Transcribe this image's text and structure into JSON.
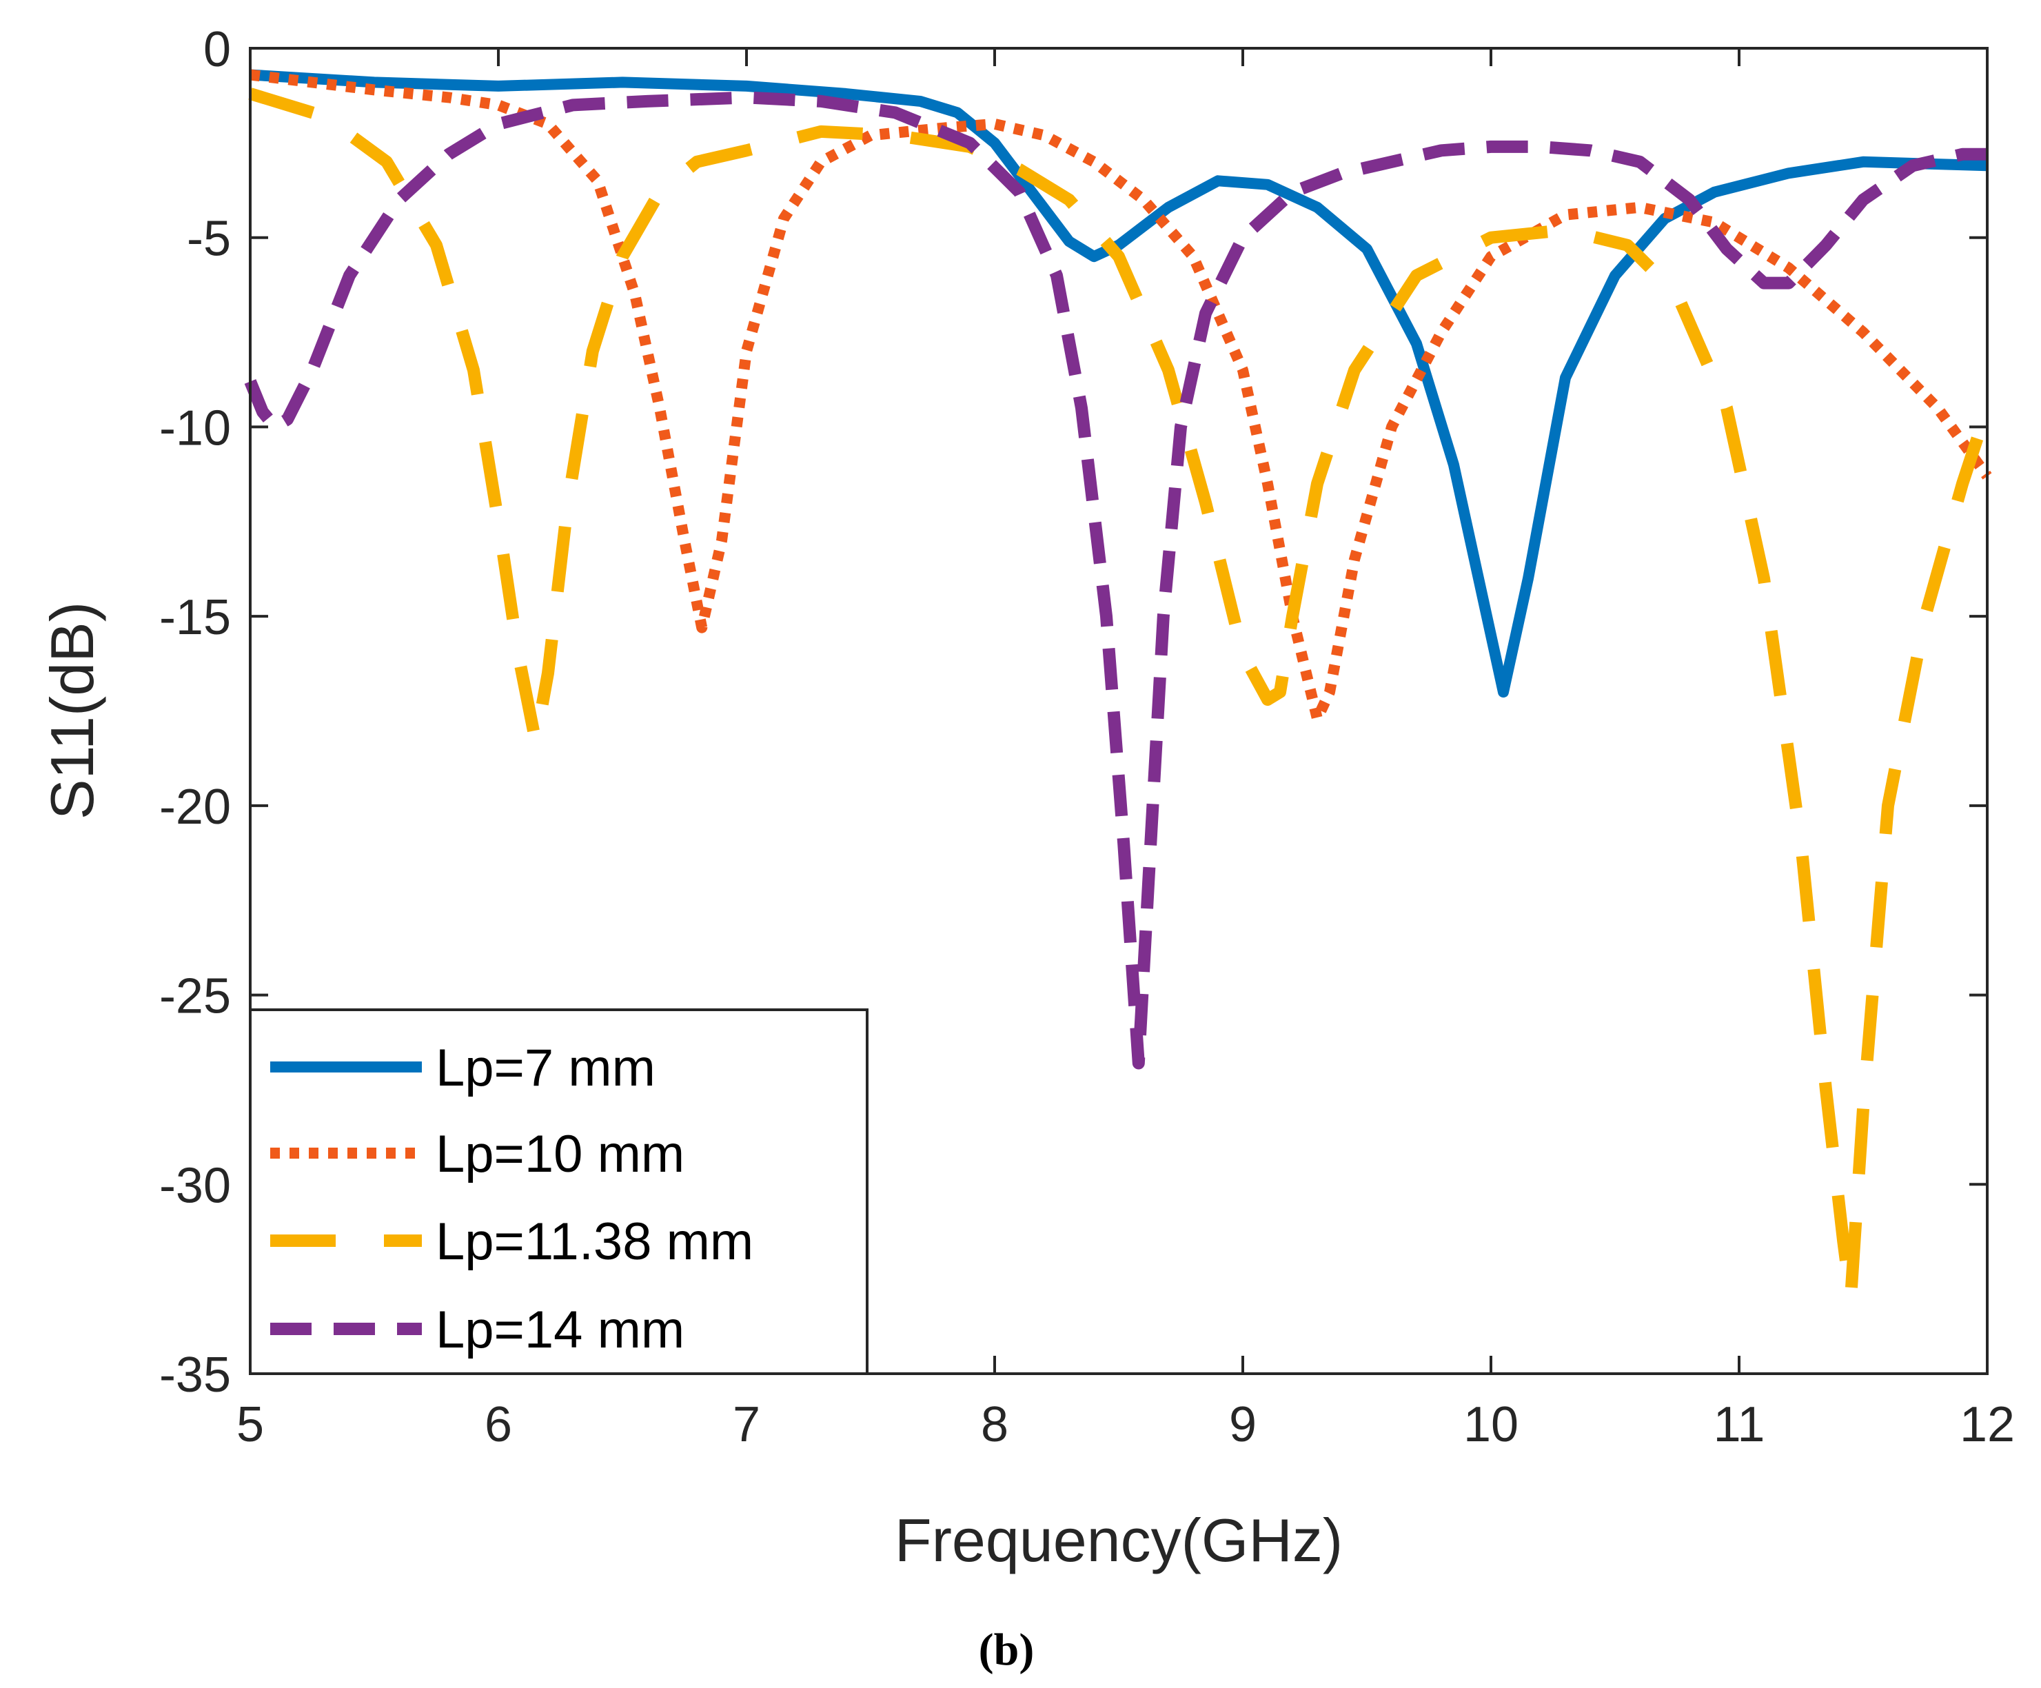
{
  "chart_data": {
    "type": "line",
    "title": "",
    "caption": "(b)",
    "xlabel": "Frequency(GHz)",
    "ylabel": "S11(dB)",
    "xlim": [
      5,
      12
    ],
    "ylim": [
      -35,
      0
    ],
    "xticks": [
      5,
      6,
      7,
      8,
      9,
      10,
      11,
      12
    ],
    "yticks": [
      0,
      -5,
      -10,
      -15,
      -20,
      -25,
      -30,
      -35
    ],
    "xtick_labels": [
      "5",
      "6",
      "7",
      "8",
      "9",
      "10",
      "11",
      "12"
    ],
    "ytick_labels": [
      "0",
      "-5",
      "-10",
      "-15",
      "-20",
      "-25",
      "-30",
      "-35"
    ],
    "grid": false,
    "legend_position": "bottom-left",
    "series": [
      {
        "name": "Lp=7 mm",
        "color": "#0072BD",
        "style": "solid",
        "x": [
          5.0,
          5.5,
          6.0,
          6.5,
          7.0,
          7.4,
          7.7,
          7.85,
          8.0,
          8.15,
          8.3,
          8.4,
          8.5,
          8.7,
          8.9,
          9.1,
          9.3,
          9.5,
          9.7,
          9.85,
          9.95,
          10.05,
          10.15,
          10.3,
          10.5,
          10.7,
          10.9,
          11.2,
          11.5,
          12.0
        ],
        "values": [
          -0.7,
          -0.9,
          -1.0,
          -0.9,
          -1.0,
          -1.2,
          -1.4,
          -1.7,
          -2.5,
          -3.8,
          -5.1,
          -5.5,
          -5.2,
          -4.2,
          -3.5,
          -3.6,
          -4.2,
          -5.3,
          -7.8,
          -11.0,
          -14.0,
          -17.0,
          -14.0,
          -8.7,
          -6.0,
          -4.5,
          -3.8,
          -3.3,
          -3.0,
          -3.1
        ]
      },
      {
        "name": "Lp=10 mm",
        "color": "#F05A1A",
        "style": "dotted",
        "x": [
          5.0,
          5.5,
          5.8,
          6.0,
          6.2,
          6.4,
          6.55,
          6.65,
          6.75,
          6.82,
          6.9,
          7.0,
          7.15,
          7.3,
          7.5,
          7.8,
          8.0,
          8.2,
          8.4,
          8.6,
          8.8,
          9.0,
          9.1,
          9.2,
          9.3,
          9.35,
          9.45,
          9.6,
          9.8,
          10.0,
          10.3,
          10.6,
          10.9,
          11.2,
          11.5,
          11.8,
          12.0
        ],
        "values": [
          -0.7,
          -1.1,
          -1.3,
          -1.5,
          -2.0,
          -3.5,
          -6.5,
          -9.5,
          -13.0,
          -15.3,
          -13.0,
          -8.0,
          -4.5,
          -3.0,
          -2.3,
          -2.1,
          -2.0,
          -2.3,
          -3.0,
          -4.0,
          -5.5,
          -8.5,
          -11.5,
          -15.0,
          -17.7,
          -17.0,
          -13.5,
          -10.0,
          -7.5,
          -5.5,
          -4.4,
          -4.2,
          -4.6,
          -5.8,
          -7.5,
          -9.5,
          -11.3
        ]
      },
      {
        "name": "Lp=11.38 mm",
        "color": "#F9B000",
        "style": "dashed",
        "x": [
          5.0,
          5.3,
          5.55,
          5.75,
          5.9,
          6.0,
          6.08,
          6.15,
          6.2,
          6.28,
          6.38,
          6.5,
          6.65,
          6.8,
          7.0,
          7.3,
          7.6,
          7.9,
          8.1,
          8.3,
          8.5,
          8.7,
          8.85,
          9.0,
          9.1,
          9.15,
          9.2,
          9.3,
          9.45,
          9.7,
          10.0,
          10.3,
          10.55,
          10.75,
          10.95,
          11.1,
          11.25,
          11.35,
          11.42,
          11.45,
          11.5,
          11.6,
          11.75,
          11.9,
          12.0
        ],
        "values": [
          -1.2,
          -1.8,
          -3.0,
          -5.2,
          -8.5,
          -12.5,
          -16.0,
          -18.3,
          -16.5,
          -12.0,
          -8.0,
          -5.5,
          -3.8,
          -3.0,
          -2.7,
          -2.2,
          -2.3,
          -2.6,
          -3.2,
          -4.0,
          -5.5,
          -8.5,
          -12.0,
          -16.0,
          -17.2,
          -17.0,
          -15.0,
          -11.5,
          -8.5,
          -6.0,
          -5.0,
          -4.8,
          -5.2,
          -6.5,
          -9.5,
          -14.0,
          -21.0,
          -27.5,
          -31.5,
          -33.0,
          -28.0,
          -20.0,
          -15.0,
          -11.5,
          -9.5
        ]
      },
      {
        "name": "Lp=14 mm",
        "color": "#7E2F8E",
        "style": "dashed",
        "x": [
          5.0,
          5.05,
          5.1,
          5.15,
          5.25,
          5.4,
          5.6,
          5.8,
          6.0,
          6.3,
          6.6,
          7.0,
          7.3,
          7.6,
          7.9,
          8.1,
          8.25,
          8.35,
          8.45,
          8.52,
          8.58,
          8.62,
          8.68,
          8.75,
          8.85,
          9.0,
          9.2,
          9.4,
          9.6,
          9.8,
          10.0,
          10.2,
          10.4,
          10.6,
          10.8,
          10.95,
          11.1,
          11.2,
          11.35,
          11.5,
          11.7,
          11.9,
          12.0
        ],
        "values": [
          -8.8,
          -9.6,
          -10.0,
          -9.8,
          -8.5,
          -6.0,
          -4.0,
          -2.8,
          -2.0,
          -1.5,
          -1.4,
          -1.3,
          -1.4,
          -1.7,
          -2.5,
          -3.8,
          -6.0,
          -9.5,
          -15.0,
          -21.0,
          -26.8,
          -22.0,
          -15.0,
          -10.0,
          -7.0,
          -5.0,
          -3.8,
          -3.3,
          -3.0,
          -2.7,
          -2.6,
          -2.6,
          -2.7,
          -3.0,
          -4.0,
          -5.3,
          -6.2,
          -6.2,
          -5.2,
          -4.0,
          -3.1,
          -2.8,
          -2.8
        ]
      }
    ]
  }
}
